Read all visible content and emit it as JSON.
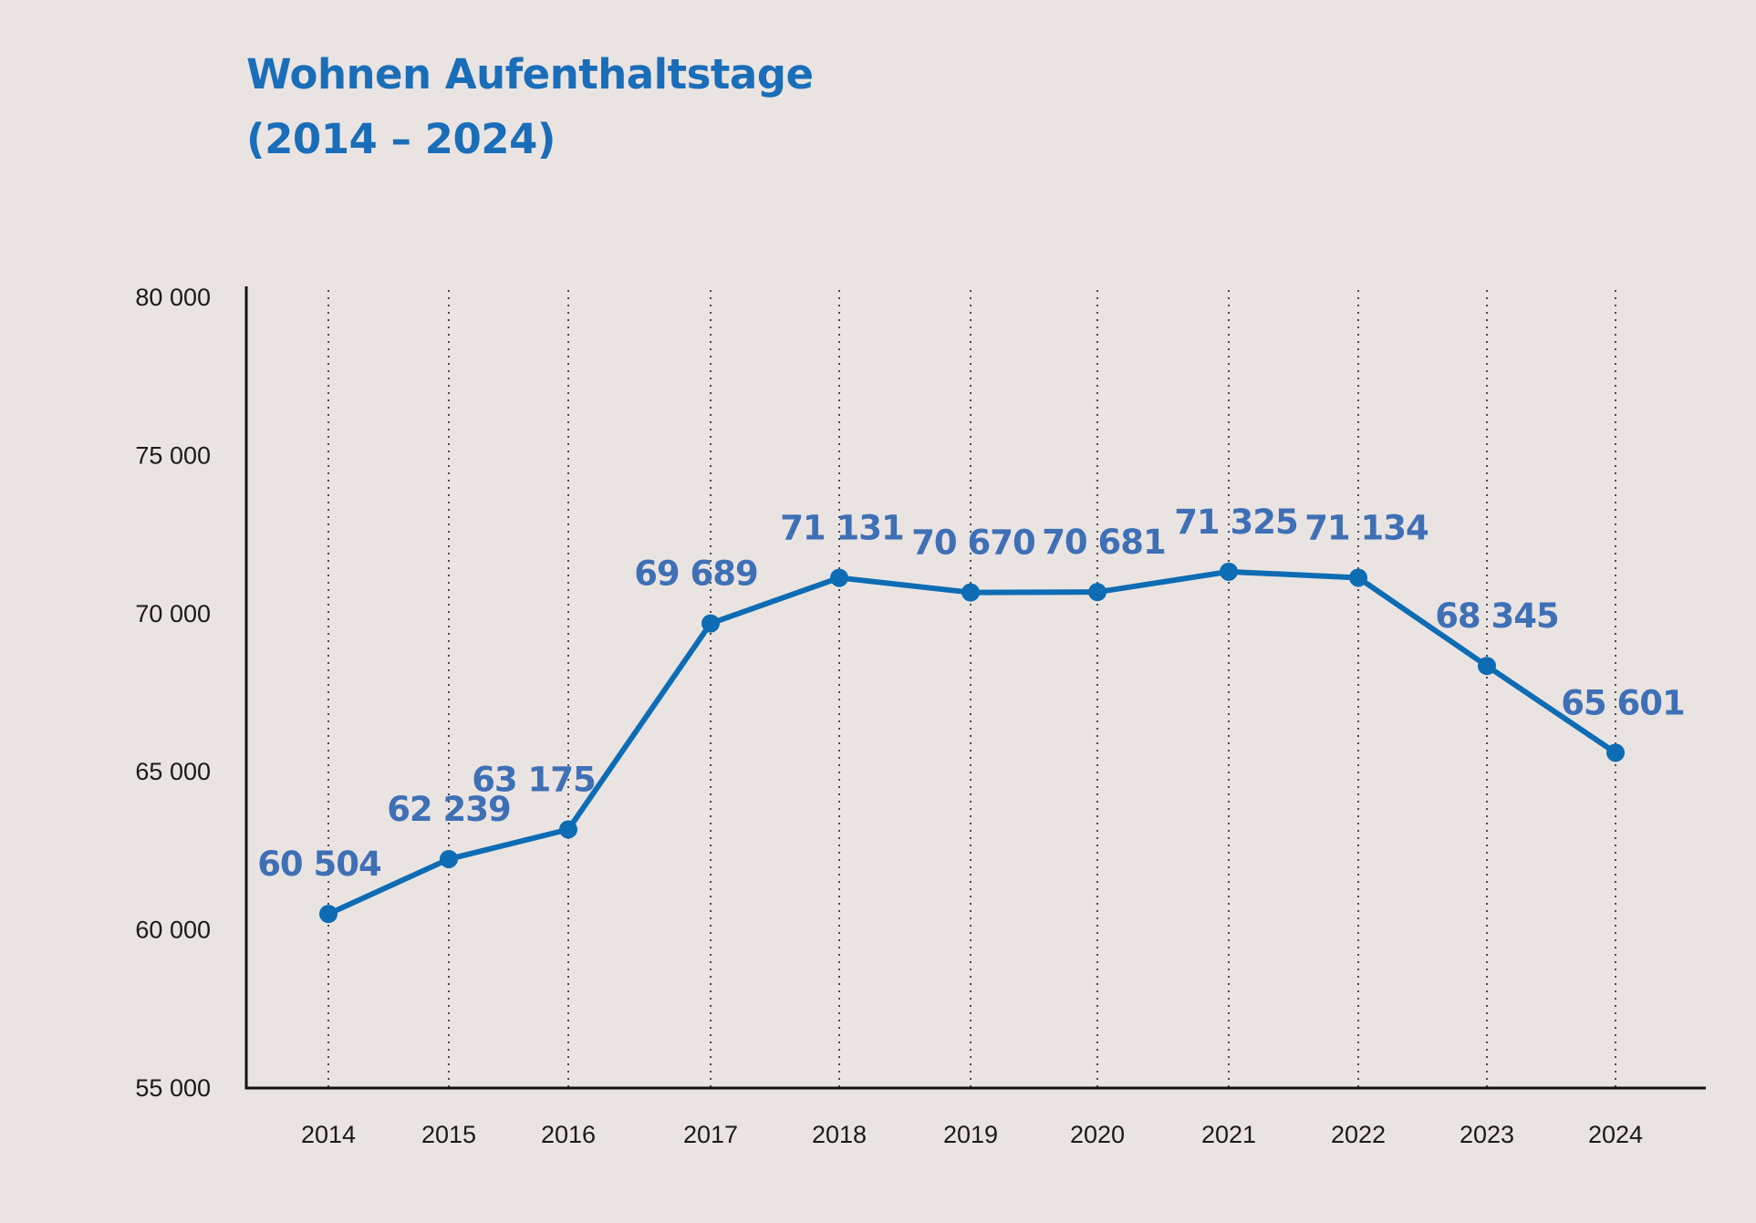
{
  "title": {
    "line1": "Wohnen Aufenthaltstage",
    "line2": "(2014 – 2024)"
  },
  "colors": {
    "background": "#e9e4e2",
    "title": "#1a6db8",
    "line": "#0d6cb3",
    "data_label": "#3f6fb5",
    "axis": "#111111"
  },
  "chart_data": {
    "type": "line",
    "title": "Wohnen Aufenthaltstage (2014 – 2024)",
    "xlabel": "",
    "ylabel": "",
    "categories": [
      "2014",
      "2015",
      "2016",
      "2017",
      "2018",
      "2019",
      "2020",
      "2021",
      "2022",
      "2023",
      "2024"
    ],
    "series": [
      {
        "values": [
          60504,
          62239,
          63175,
          69689,
          71131,
          70670,
          70681,
          71325,
          71134,
          68345,
          65601
        ],
        "labels": [
          "60 504",
          "62 239",
          "63 175",
          "69 689",
          "71 131",
          "70 670",
          "70 681",
          "71 325",
          "71 134",
          "68 345",
          "65 601"
        ]
      }
    ],
    "ylim": [
      55000,
      80000
    ],
    "yticks": [
      55000,
      60000,
      65000,
      70000,
      75000,
      80000
    ],
    "ytick_labels": [
      "55 000",
      "60 000",
      "65 000",
      "70 000",
      "75 000",
      "80 000"
    ],
    "grid": "vertical dotted lines at each year",
    "legend": "none"
  }
}
